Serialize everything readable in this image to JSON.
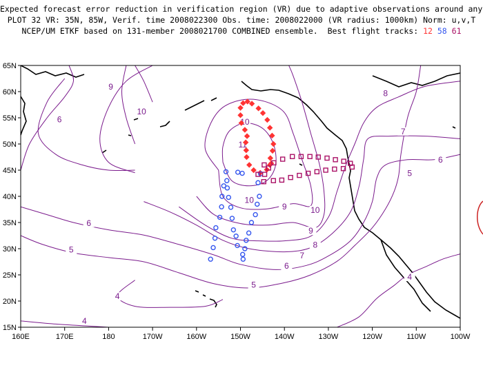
{
  "title": {
    "line1": "Expected forecast error reduction in verification region (VR) due to adaptive observations around any grid point.",
    "line2": "PLOT 32 VR: 35N, 85W, Verif. time 2008022300 Obs. time: 2008022000 (VR radius: 1000km) Norm: u,v,T",
    "line3_prefix": "NCEP/UM ETKF based on 131-member 2008021700 COMBINED ensemble.  Best flight tracks:",
    "track_ids": [
      "12",
      "58",
      "61"
    ]
  },
  "colors": {
    "contour": "#7a1a8c",
    "track_12": "#ff3333",
    "track_58": "#3355ee",
    "track_61": "#aa1166",
    "coast": "#000000"
  },
  "map": {
    "lon_range": [
      160,
      260
    ],
    "lat_range": [
      15,
      65
    ],
    "x_ticks": [
      "160E",
      "170E",
      "180",
      "170W",
      "160W",
      "150W",
      "140W",
      "130W",
      "120W",
      "110W",
      "100W"
    ],
    "y_ticks": [
      "15N",
      "20N",
      "25N",
      "30N",
      "35N",
      "40N",
      "45N",
      "50N",
      "55N",
      "60N",
      "65N"
    ]
  },
  "contour_labels": [
    {
      "text": "9",
      "lon": 180.5,
      "lat": 60.5
    },
    {
      "text": "6",
      "lon": 168.8,
      "lat": 54.3
    },
    {
      "text": "10",
      "lon": 187.5,
      "lat": 55.8
    },
    {
      "text": "11",
      "lon": 210.5,
      "lat": 49.5
    },
    {
      "text": "10",
      "lon": 211.0,
      "lat": 53.8
    },
    {
      "text": "8",
      "lon": 243.0,
      "lat": 59.3
    },
    {
      "text": "7",
      "lon": 247.0,
      "lat": 52.0
    },
    {
      "text": "6",
      "lon": 255.5,
      "lat": 46.6
    },
    {
      "text": "5",
      "lon": 248.5,
      "lat": 44.0
    },
    {
      "text": "10",
      "lon": 212.0,
      "lat": 38.9
    },
    {
      "text": "9",
      "lon": 220.0,
      "lat": 37.6
    },
    {
      "text": "10",
      "lon": 227.0,
      "lat": 37.0
    },
    {
      "text": "9",
      "lon": 226.0,
      "lat": 33.0
    },
    {
      "text": "8",
      "lon": 227.0,
      "lat": 30.3
    },
    {
      "text": "7",
      "lon": 224.0,
      "lat": 28.3
    },
    {
      "text": "6",
      "lon": 220.5,
      "lat": 26.3
    },
    {
      "text": "5",
      "lon": 213.0,
      "lat": 22.7
    },
    {
      "text": "6",
      "lon": 175.5,
      "lat": 34.5
    },
    {
      "text": "5",
      "lon": 171.5,
      "lat": 29.4
    },
    {
      "text": "4",
      "lon": 182.0,
      "lat": 20.5
    },
    {
      "text": "4",
      "lon": 174.5,
      "lat": 15.8
    },
    {
      "text": "4",
      "lon": 248.5,
      "lat": 24.2
    }
  ],
  "flight_tracks": [
    {
      "id": "12",
      "marker": "filled-diamond",
      "points": [
        [
          211.2,
          50.3
        ],
        [
          211.3,
          48.8
        ],
        [
          211.4,
          47.5
        ],
        [
          212.0,
          46.0
        ],
        [
          213.0,
          45.0
        ],
        [
          214.5,
          44.5
        ],
        [
          216.0,
          45.1
        ],
        [
          216.7,
          46.0
        ],
        [
          217.0,
          46.3
        ],
        [
          216.8,
          47.3
        ],
        [
          217.3,
          48.7
        ],
        [
          217.5,
          50.0
        ],
        [
          217.2,
          51.6
        ],
        [
          216.7,
          53.1
        ],
        [
          216.1,
          54.6
        ],
        [
          215.1,
          55.9
        ],
        [
          214.1,
          56.8
        ],
        [
          212.6,
          57.7
        ],
        [
          211.6,
          58.1
        ],
        [
          210.6,
          57.8
        ],
        [
          210.0,
          56.9
        ],
        [
          210.0,
          55.5
        ],
        [
          210.2,
          54.0
        ],
        [
          211.0,
          52.7
        ],
        [
          211.5,
          51.5
        ]
      ]
    },
    {
      "id": "58",
      "marker": "open-circle",
      "points": [
        [
          214.6,
          44.3
        ],
        [
          214.0,
          42.6
        ],
        [
          214.3,
          40.0
        ],
        [
          213.8,
          38.5
        ],
        [
          213.4,
          36.5
        ],
        [
          212.5,
          35.0
        ],
        [
          211.9,
          33.0
        ],
        [
          211.3,
          31.6
        ],
        [
          211.0,
          30.0
        ],
        [
          210.6,
          28.0
        ],
        [
          210.5,
          28.9
        ],
        [
          209.3,
          30.6
        ],
        [
          209.0,
          32.4
        ],
        [
          208.4,
          33.6
        ],
        [
          208.1,
          35.8
        ],
        [
          207.8,
          37.9
        ],
        [
          207.3,
          39.8
        ],
        [
          207.0,
          41.6
        ],
        [
          206.9,
          43.0
        ],
        [
          206.7,
          44.7
        ],
        [
          206.2,
          42.0
        ],
        [
          205.8,
          40.0
        ],
        [
          205.7,
          38.0
        ],
        [
          205.3,
          36.0
        ],
        [
          204.4,
          34.0
        ],
        [
          204.2,
          32.0
        ],
        [
          203.8,
          30.2
        ],
        [
          203.2,
          28.0
        ],
        [
          210.4,
          44.4
        ],
        [
          209.4,
          44.6
        ]
      ]
    },
    {
      "id": "61",
      "marker": "open-square",
      "points": [
        [
          214.0,
          44.2
        ],
        [
          215.5,
          44.2
        ],
        [
          215.3,
          42.8
        ],
        [
          217.5,
          43.0
        ],
        [
          219.4,
          43.1
        ],
        [
          221.4,
          43.6
        ],
        [
          223.4,
          44.0
        ],
        [
          225.4,
          44.4
        ],
        [
          227.4,
          44.7
        ],
        [
          229.4,
          45.0
        ],
        [
          231.4,
          45.2
        ],
        [
          233.4,
          45.3
        ],
        [
          235.4,
          45.6
        ],
        [
          235.0,
          46.3
        ],
        [
          233.5,
          46.7
        ],
        [
          231.6,
          47.0
        ],
        [
          229.7,
          47.3
        ],
        [
          227.7,
          47.5
        ],
        [
          225.8,
          47.6
        ],
        [
          223.8,
          47.6
        ],
        [
          221.8,
          47.6
        ],
        [
          219.6,
          47.1
        ],
        [
          217.6,
          46.4
        ],
        [
          215.4,
          46.0
        ],
        [
          216.4,
          45.4
        ]
      ]
    }
  ],
  "contours": [
    {
      "level": 4,
      "points": [
        [
          160,
          16.2
        ],
        [
          168,
          15.6
        ],
        [
          176,
          15.2
        ],
        [
          180,
          15.0
        ]
      ]
    },
    {
      "level": 4,
      "points": [
        [
          186,
          24.0
        ],
        [
          182,
          21.0
        ],
        [
          186,
          19.0
        ],
        [
          194,
          18.8
        ],
        [
          202,
          19.0
        ],
        [
          206,
          20.3
        ]
      ]
    },
    {
      "level": 4,
      "points": [
        [
          232,
          15.0
        ],
        [
          237,
          17.0
        ],
        [
          241,
          20.5
        ],
        [
          245,
          23.0
        ],
        [
          248,
          25.0
        ],
        [
          252,
          26.5
        ],
        [
          256,
          28.0
        ],
        [
          260,
          29.0
        ]
      ]
    },
    {
      "level": 5,
      "points": [
        [
          160,
          32.5
        ],
        [
          165,
          30.8
        ],
        [
          172,
          29.2
        ],
        [
          180,
          28.3
        ],
        [
          188,
          27.5
        ],
        [
          196,
          25.4
        ],
        [
          204,
          23.3
        ],
        [
          212,
          22.5
        ],
        [
          220,
          23.5
        ],
        [
          226,
          25.0
        ],
        [
          232,
          27.6
        ],
        [
          236,
          30.6
        ],
        [
          240,
          34.0
        ],
        [
          243,
          37.6
        ],
        [
          245,
          41.0
        ],
        [
          246,
          44.0
        ],
        [
          246.5,
          48.0
        ],
        [
          248,
          55.0
        ],
        [
          250,
          60.0
        ],
        [
          251,
          65.0
        ]
      ]
    },
    {
      "level": 5,
      "points": [
        [
          160,
          45.0
        ],
        [
          162,
          50.0
        ],
        [
          166,
          55.0
        ],
        [
          170,
          59.0
        ],
        [
          172,
          62.0
        ],
        [
          171,
          65.0
        ]
      ]
    },
    {
      "level": 6,
      "points": [
        [
          160,
          38.0
        ],
        [
          166,
          36.5
        ],
        [
          172,
          35.0
        ],
        [
          180,
          33.6
        ],
        [
          188,
          32.6
        ],
        [
          196,
          30.8
        ],
        [
          204,
          28.8
        ],
        [
          210,
          27.0
        ],
        [
          218,
          26.0
        ],
        [
          225,
          26.8
        ],
        [
          230,
          28.6
        ],
        [
          235,
          31.5
        ],
        [
          238,
          35.0
        ],
        [
          240,
          39.0
        ],
        [
          241,
          43.5
        ],
        [
          243,
          46.0
        ],
        [
          248,
          47.0
        ],
        [
          254,
          47.0
        ],
        [
          260,
          48.0
        ]
      ]
    },
    {
      "level": 6,
      "points": [
        [
          170,
          62.5
        ],
        [
          166,
          58.0
        ],
        [
          164,
          52.0
        ],
        [
          168,
          48.0
        ],
        [
          174,
          46.0
        ],
        [
          180,
          45.0
        ],
        [
          186,
          45.0
        ]
      ]
    },
    {
      "level": 7,
      "points": [
        [
          186,
          44.5
        ],
        [
          180,
          46.5
        ],
        [
          178,
          51.0
        ],
        [
          180,
          57.0
        ],
        [
          184,
          62.0
        ],
        [
          190,
          65.0
        ]
      ]
    },
    {
      "level": 7,
      "points": [
        [
          188,
          39.0
        ],
        [
          194,
          37.0
        ],
        [
          200,
          34.5
        ],
        [
          206,
          31.6
        ],
        [
          212,
          30.0
        ],
        [
          220,
          29.4
        ],
        [
          226,
          30.2
        ],
        [
          231,
          33.0
        ],
        [
          235,
          37.0
        ],
        [
          237,
          42.0
        ],
        [
          238,
          47.0
        ],
        [
          239,
          51.0
        ],
        [
          244,
          51.5
        ],
        [
          252,
          51.5
        ],
        [
          260,
          51.0
        ]
      ]
    },
    {
      "level": 8,
      "points": [
        [
          196,
          38.0
        ],
        [
          202,
          34.5
        ],
        [
          208,
          32.0
        ],
        [
          214,
          31.5
        ],
        [
          220,
          31.5
        ],
        [
          226,
          32.4
        ],
        [
          230,
          36.0
        ],
        [
          232,
          41.0
        ],
        [
          234,
          46.0
        ],
        [
          236,
          50.0
        ],
        [
          238,
          54.0
        ],
        [
          241,
          57.0
        ],
        [
          246,
          59.0
        ],
        [
          252,
          61.0
        ],
        [
          260,
          62.0
        ]
      ]
    },
    {
      "level": 8,
      "points": [
        [
          186,
          50.0
        ],
        [
          184,
          55.0
        ],
        [
          183,
          60.0
        ],
        [
          184,
          65.0
        ]
      ]
    },
    {
      "level": 9,
      "points": [
        [
          190,
          58.0
        ],
        [
          188,
          62.0
        ],
        [
          186,
          65.0
        ]
      ]
    },
    {
      "level": 9,
      "points": [
        [
          200,
          40.0
        ],
        [
          204,
          36.5
        ],
        [
          210,
          34.8
        ],
        [
          216,
          34.5
        ],
        [
          222,
          35.0
        ],
        [
          227,
          34.0
        ],
        [
          229,
          36.5
        ],
        [
          229,
          41.0
        ],
        [
          228,
          46.0
        ],
        [
          226,
          52.0
        ],
        [
          224,
          58.0
        ],
        [
          222,
          63.0
        ],
        [
          221,
          65.0
        ]
      ]
    },
    {
      "level": 10,
      "points": [
        [
          205,
          45.0
        ],
        [
          206,
          40.0
        ],
        [
          210,
          37.8
        ],
        [
          216,
          37.6
        ],
        [
          222,
          38.6
        ],
        [
          226,
          38.2
        ],
        [
          226,
          42.0
        ],
        [
          224,
          47.0
        ],
        [
          222,
          52.0
        ],
        [
          220,
          56.0
        ],
        [
          216,
          58.0
        ],
        [
          211,
          58.5
        ],
        [
          206,
          57.0
        ],
        [
          203,
          53.5
        ],
        [
          202,
          49.0
        ],
        [
          205,
          45.0
        ]
      ]
    },
    {
      "level": 11,
      "points": [
        [
          206,
          46.5
        ],
        [
          208,
          43.0
        ],
        [
          212,
          42.0
        ],
        [
          216,
          43.0
        ],
        [
          218,
          46.0
        ],
        [
          217.5,
          50.0
        ],
        [
          215,
          53.0
        ],
        [
          211,
          54.0
        ],
        [
          207.5,
          52.5
        ],
        [
          206,
          49.5
        ],
        [
          206,
          46.5
        ]
      ]
    }
  ]
}
